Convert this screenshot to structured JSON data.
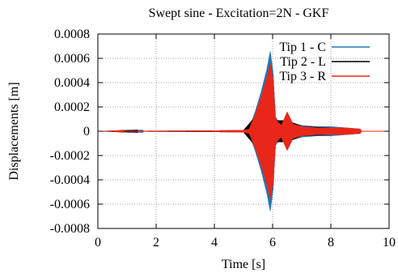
{
  "chart_data": {
    "type": "line",
    "title": "Swept sine - Excitation=2N - GKF",
    "xlabel": "Time [s]",
    "ylabel": "Displacements [m]",
    "xlim": [
      0,
      10
    ],
    "ylim": [
      -0.0008,
      0.0008
    ],
    "xticks": [
      0,
      2,
      4,
      6,
      8,
      10
    ],
    "xtick_labels": [
      "0",
      "2",
      "4",
      "6",
      "8",
      "10"
    ],
    "yticks": [
      0.0008,
      0.0006,
      0.0004,
      0.0002,
      0,
      -0.0002,
      -0.0004,
      -0.0006,
      -0.0008
    ],
    "ytick_labels": [
      "0.0008",
      "0.0006",
      "0.0004",
      "0.0002",
      "0",
      "-0.0002",
      "-0.0004",
      "-0.0006",
      "-0.0008"
    ],
    "grid": true,
    "legend_position": "top-right",
    "series": [
      {
        "name": "Tip 1 - C",
        "color": "#1f77b4",
        "envelope": {
          "t": [
            0,
            0.3,
            1.0,
            2.0,
            3.0,
            4.0,
            5.0,
            5.2,
            5.4,
            5.6,
            5.8,
            5.92,
            6.02,
            6.1,
            6.2,
            6.3,
            6.5,
            6.7,
            7.0,
            7.5,
            8.0,
            8.5,
            9.0,
            9.05,
            9.5,
            10.0
          ],
          "amp": [
            0,
            0,
            2e-06,
            3e-06,
            4e-06,
            6e-06,
            1e-05,
            3e-05,
            0.00016,
            0.00032,
            0.00051,
            0.00066,
            0.00048,
            0.00012,
            8e-05,
            6e-05,
            0.00012,
            7e-05,
            5e-05,
            4e-05,
            4e-05,
            3e-05,
            2e-05,
            0,
            0,
            0
          ]
        }
      },
      {
        "name": "Tip 2 - L",
        "color": "#000000",
        "envelope": {
          "t": [
            0,
            1.0,
            5.0,
            5.4,
            5.8,
            5.92,
            6.1,
            6.5,
            7.0,
            8.0,
            9.0,
            9.05,
            10.0
          ],
          "amp": [
            0,
            2e-06,
            8e-06,
            0.00012,
            0.00038,
            0.00046,
            9e-05,
            9e-05,
            4e-05,
            3e-05,
            2e-05,
            0,
            0
          ]
        }
      },
      {
        "name": "Tip 3 - R",
        "color": "#e8271a",
        "envelope": {
          "t": [
            0,
            0.3,
            1.0,
            2.0,
            3.0,
            4.0,
            5.0,
            5.2,
            5.4,
            5.6,
            5.8,
            5.92,
            6.02,
            6.1,
            6.2,
            6.3,
            6.5,
            6.7,
            7.0,
            7.5,
            8.0,
            8.5,
            9.0,
            9.05,
            9.5,
            10.0
          ],
          "amp": [
            0,
            0,
            3e-06,
            4e-06,
            4e-06,
            6e-06,
            1e-05,
            2e-05,
            0.00014,
            0.00028,
            0.00044,
            0.00056,
            0.00042,
            0.00011,
            7e-05,
            5e-05,
            0.00016,
            6e-05,
            4e-05,
            3e-05,
            3e-05,
            3e-05,
            2e-05,
            0,
            0,
            0
          ]
        }
      }
    ]
  }
}
